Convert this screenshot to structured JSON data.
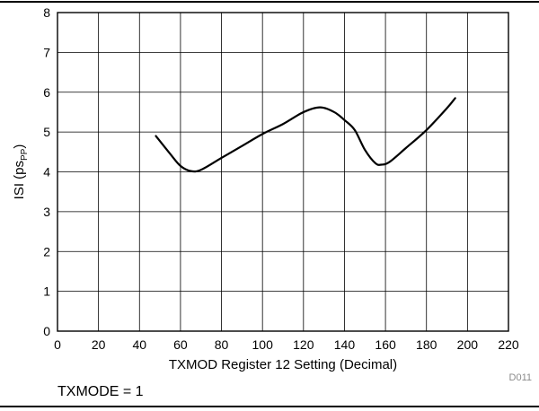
{
  "chart_data": {
    "type": "line",
    "xlabel": "TXMOD Register 12 Setting (Decimal)",
    "ylabel_main": "ISI (ps",
    "ylabel_sub": "PP",
    "ylabel_close": ")",
    "xlim": [
      0,
      220
    ],
    "ylim": [
      0,
      8
    ],
    "xticks": [
      0,
      20,
      40,
      60,
      80,
      100,
      120,
      140,
      160,
      180,
      200,
      220
    ],
    "yticks": [
      0,
      1,
      2,
      3,
      4,
      5,
      6,
      7,
      8
    ],
    "grid": true,
    "series": [
      {
        "x": [
          48,
          55,
          60,
          65,
          70,
          80,
          90,
          100,
          110,
          120,
          128,
          135,
          140,
          145,
          150,
          155,
          158,
          162,
          170,
          180,
          190,
          194
        ],
        "y": [
          4.9,
          4.45,
          4.15,
          4.02,
          4.05,
          4.35,
          4.65,
          4.95,
          5.2,
          5.5,
          5.62,
          5.5,
          5.3,
          5.05,
          4.55,
          4.22,
          4.18,
          4.25,
          4.6,
          5.05,
          5.6,
          5.85
        ]
      }
    ],
    "figure_code": "D011"
  },
  "footnote": "TXMODE = 1"
}
